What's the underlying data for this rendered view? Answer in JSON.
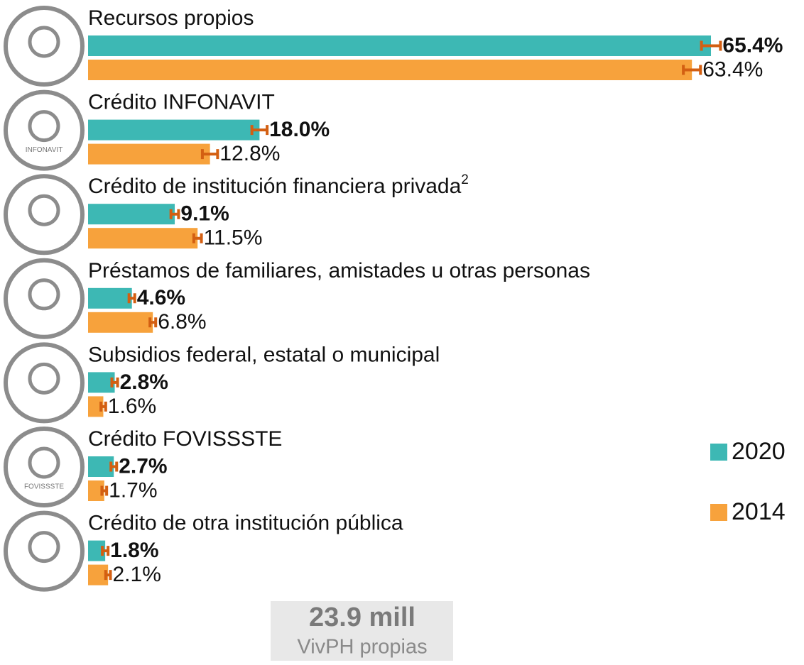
{
  "chart_data": {
    "type": "bar",
    "orientation": "horizontal",
    "categories": [
      "Recursos propios",
      "Crédito INFONAVIT",
      "Crédito de institución financiera privada",
      "Préstamos de familiares, amistades u otras personas",
      "Subsidios federal, estatal o municipal",
      "Crédito FOVISSSTE",
      "Crédito de otra institución pública"
    ],
    "category_notes": [
      null,
      null,
      "2",
      null,
      null,
      null,
      null
    ],
    "icon_labels": [
      null,
      "INFONAVIT",
      null,
      null,
      null,
      "FOVISSSTE",
      null
    ],
    "series": [
      {
        "name": "2020",
        "color": "#3db8b4",
        "values": [
          65.4,
          18.0,
          9.1,
          4.6,
          2.8,
          2.7,
          1.8
        ],
        "value_labels": [
          "65.4%",
          "18.0%",
          "9.1%",
          "4.6%",
          "2.8%",
          "2.7%",
          "1.8%"
        ],
        "errors": [
          1.0,
          0.8,
          0.4,
          0.3,
          0.3,
          0.3,
          0.3
        ]
      },
      {
        "name": "2014",
        "color": "#f7a23c",
        "values": [
          63.4,
          12.8,
          11.5,
          6.8,
          1.6,
          1.7,
          2.1
        ],
        "value_labels": [
          "63.4%",
          "12.8%",
          "11.5%",
          "6.8%",
          "1.6%",
          "1.7%",
          "2.1%"
        ],
        "errors": [
          0.9,
          0.8,
          0.4,
          0.3,
          0.25,
          0.25,
          0.25
        ]
      }
    ],
    "error_color": "#d35f12",
    "legend": "right",
    "summary": {
      "value": "23.9 mill",
      "label": "VivPH propias"
    }
  }
}
